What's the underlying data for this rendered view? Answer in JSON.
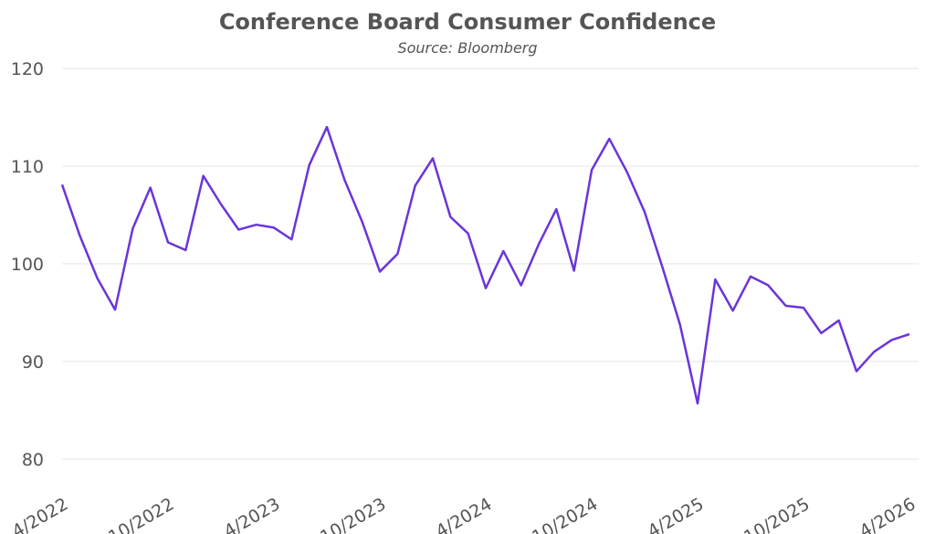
{
  "chart_data": {
    "type": "line",
    "title": "Conference Board Consumer Confidence",
    "subtitle": "Source: Bloomberg",
    "categories": [
      "4/2022",
      null,
      null,
      null,
      null,
      null,
      "10/2022",
      null,
      null,
      null,
      null,
      null,
      "4/2023",
      null,
      null,
      null,
      null,
      null,
      "10/2023",
      null,
      null,
      null,
      null,
      null,
      "4/2024",
      null,
      null,
      null,
      null,
      null,
      "10/2024",
      null,
      null,
      null,
      null,
      null,
      "4/2025",
      null,
      null,
      null,
      null,
      null,
      "10/2025",
      null,
      null,
      null,
      null,
      null,
      "4/2026"
    ],
    "series": [
      {
        "color": "#6a35d9",
        "values": [
          108.1,
          102.9,
          98.5,
          95.3,
          103.6,
          107.8,
          102.2,
          101.4,
          109.0,
          106.1,
          103.5,
          104.0,
          103.7,
          102.5,
          110.1,
          114.0,
          108.6,
          104.3,
          99.2,
          101.0,
          108.0,
          110.8,
          104.8,
          103.1,
          97.5,
          101.3,
          97.8,
          102.0,
          105.6,
          99.3,
          109.6,
          112.8,
          109.4,
          105.3,
          99.7,
          93.8,
          85.7,
          98.4,
          95.2,
          98.7,
          97.8,
          95.7,
          95.5,
          92.9,
          94.2,
          89.0,
          91.0,
          92.2,
          92.8
        ]
      }
    ],
    "ylim": [
      80,
      120
    ],
    "yticks": [
      80,
      90,
      100,
      110,
      120
    ],
    "grid": true
  }
}
